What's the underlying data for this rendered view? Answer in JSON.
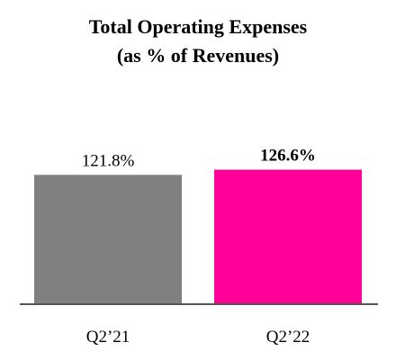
{
  "chart_data": {
    "type": "bar",
    "title_lines": [
      "Total Operating Expenses",
      "(as % of Revenues)"
    ],
    "categories": [
      "Q2’21",
      "Q2’22"
    ],
    "values": [
      121.8,
      126.6
    ],
    "value_labels": [
      "121.8%",
      "126.6%"
    ],
    "value_label_bold": [
      false,
      true
    ],
    "colors": [
      "#808080",
      "#ff0099"
    ],
    "xlabel": "",
    "ylabel": "",
    "ylim": [
      0,
      140
    ],
    "grid": false,
    "legend": "none"
  }
}
